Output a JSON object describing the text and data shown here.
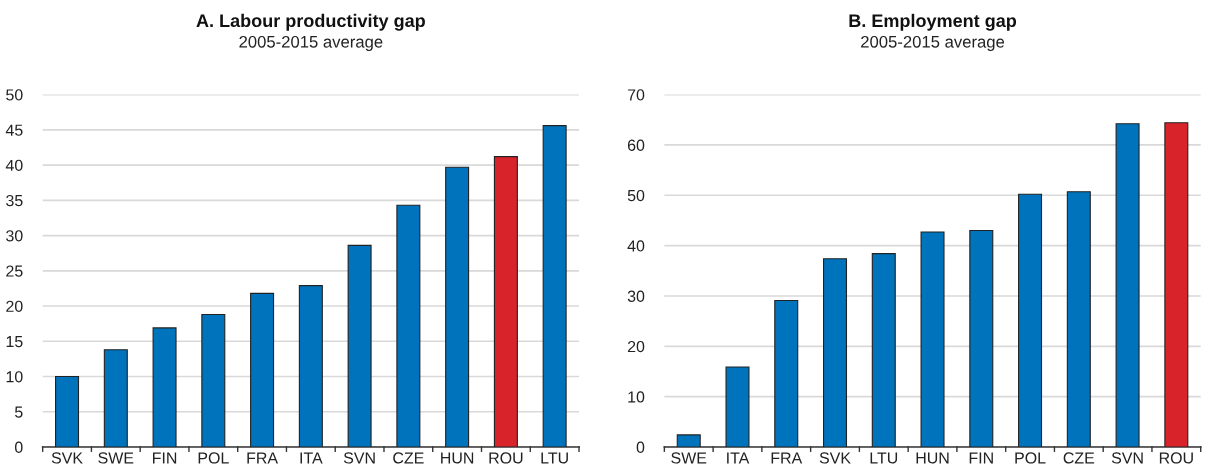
{
  "chart_data": [
    {
      "type": "bar",
      "title": "A. Labour productivity gap",
      "subtitle": "2005-2015 average",
      "categories": [
        "SVK",
        "SWE",
        "FIN",
        "POL",
        "FRA",
        "ITA",
        "SVN",
        "CZE",
        "HUN",
        "ROU",
        "LTU"
      ],
      "values": [
        10,
        13.8,
        16.9,
        18.8,
        21.8,
        22.9,
        28.6,
        34.3,
        39.7,
        41.2,
        45.6
      ],
      "colors": [
        "#0073bd",
        "#0073bd",
        "#0073bd",
        "#0073bd",
        "#0073bd",
        "#0073bd",
        "#0073bd",
        "#0073bd",
        "#0073bd",
        "#d9232a",
        "#0073bd"
      ],
      "ylim": [
        0,
        50
      ],
      "yticks": [
        0,
        5,
        10,
        15,
        20,
        25,
        30,
        35,
        40,
        45,
        50
      ],
      "grid": "y"
    },
    {
      "type": "bar",
      "title": "B. Employment gap",
      "subtitle": "2005-2015 average",
      "categories": [
        "SWE",
        "ITA",
        "FRA",
        "SVK",
        "LTU",
        "HUN",
        "FIN",
        "POL",
        "CZE",
        "SVN",
        "ROU"
      ],
      "values": [
        2.4,
        15.9,
        29.1,
        37.4,
        38.4,
        42.7,
        43.0,
        50.2,
        50.7,
        64.2,
        64.4
      ],
      "colors": [
        "#0073bd",
        "#0073bd",
        "#0073bd",
        "#0073bd",
        "#0073bd",
        "#0073bd",
        "#0073bd",
        "#0073bd",
        "#0073bd",
        "#0073bd",
        "#d9232a"
      ],
      "ylim": [
        0,
        70
      ],
      "yticks": [
        0,
        10,
        20,
        30,
        40,
        50,
        60,
        70
      ],
      "grid": "y"
    }
  ]
}
